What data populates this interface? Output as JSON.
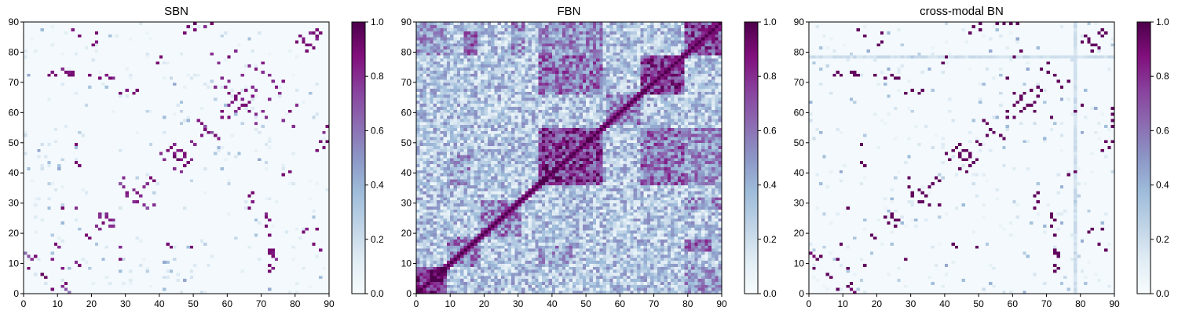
{
  "chart_data": [
    {
      "type": "heatmap",
      "title": "SBN",
      "xlabel": "",
      "ylabel": "",
      "xlim": [
        0,
        90
      ],
      "ylim": [
        0,
        90
      ],
      "xticks": [
        "0",
        "10",
        "20",
        "30",
        "40",
        "50",
        "60",
        "70",
        "80",
        "90"
      ],
      "yticks": [
        "0",
        "10",
        "20",
        "30",
        "40",
        "50",
        "60",
        "70",
        "80",
        "90"
      ],
      "colorbar": {
        "range": [
          0,
          1
        ],
        "ticks": [
          "0.0",
          "0.2",
          "0.4",
          "0.6",
          "0.8",
          "1.0"
        ]
      },
      "matrix_size": 90,
      "background": 0.02,
      "pairs": [
        [
          1,
          8,
          0.9
        ],
        [
          2,
          11,
          0.8
        ],
        [
          3,
          12,
          0.9
        ],
        [
          5,
          6,
          0.95
        ],
        [
          1,
          12,
          0.7
        ],
        [
          0,
          13,
          0.6
        ],
        [
          7,
          72,
          0.9
        ],
        [
          8,
          73,
          0.85
        ],
        [
          12,
          73,
          0.9
        ],
        [
          13,
          72,
          0.9
        ],
        [
          14,
          73,
          0.9
        ],
        [
          22,
          71,
          0.9
        ],
        [
          24,
          72,
          0.85
        ],
        [
          25,
          71,
          0.9
        ],
        [
          28,
          66,
          0.9
        ],
        [
          30,
          67,
          0.85
        ],
        [
          32,
          66,
          0.9
        ],
        [
          33,
          67,
          0.9
        ],
        [
          30,
          32,
          0.8
        ],
        [
          32,
          34,
          0.8
        ],
        [
          33,
          33,
          0.85
        ],
        [
          35,
          35,
          0.8
        ],
        [
          36,
          36,
          0.8
        ],
        [
          38,
          37,
          0.9
        ],
        [
          37,
          38,
          0.9
        ],
        [
          44,
          45,
          0.9
        ],
        [
          45,
          44,
          0.95
        ],
        [
          46,
          44,
          0.85
        ],
        [
          47,
          42,
          0.9
        ],
        [
          48,
          43,
          0.9
        ],
        [
          49,
          44,
          0.8
        ],
        [
          40,
          78,
          0.9
        ],
        [
          39,
          76,
          0.9
        ],
        [
          50,
          49,
          0.8
        ],
        [
          52,
          52,
          0.85
        ],
        [
          53,
          54,
          0.9
        ],
        [
          55,
          53,
          0.7
        ],
        [
          56,
          52,
          0.9
        ],
        [
          57,
          51,
          0.85
        ],
        [
          58,
          58,
          0.85
        ],
        [
          60,
          58,
          0.9
        ],
        [
          60,
          62,
          0.8
        ],
        [
          62,
          64,
          0.9
        ],
        [
          63,
          66,
          0.9
        ],
        [
          64,
          64,
          0.8
        ],
        [
          65,
          62,
          0.9
        ],
        [
          66,
          60,
          0.9
        ],
        [
          67,
          68,
          0.9
        ],
        [
          58,
          71,
          0.8
        ],
        [
          60,
          70,
          0.8
        ],
        [
          61,
          63,
          0.85
        ],
        [
          62,
          60,
          0.8
        ],
        [
          72,
          72,
          0.8
        ],
        [
          73,
          70,
          0.8
        ],
        [
          74,
          68,
          0.85
        ],
        [
          75,
          66,
          0.8
        ],
        [
          76,
          70,
          0.85
        ],
        [
          80,
          83,
          0.9
        ],
        [
          81,
          85,
          0.9
        ],
        [
          82,
          84,
          0.85
        ],
        [
          83,
          82,
          0.9
        ],
        [
          85,
          86,
          0.9
        ],
        [
          86,
          84,
          0.8
        ],
        [
          87,
          86,
          0.9
        ],
        [
          82,
          20,
          0.9
        ],
        [
          83,
          21,
          0.85
        ],
        [
          85,
          16,
          0.9
        ],
        [
          87,
          14,
          0.85
        ],
        [
          86,
          21,
          0.9
        ],
        [
          88,
          48,
          0.9
        ],
        [
          89,
          50,
          0.95
        ],
        [
          89,
          55,
          0.9
        ],
        [
          88,
          53,
          0.8
        ],
        [
          87,
          50,
          0.9
        ],
        [
          86,
          47,
          0.9
        ],
        [
          18,
          19,
          0.9
        ],
        [
          23,
          23,
          0.9
        ],
        [
          24,
          25,
          0.9
        ],
        [
          25,
          24,
          0.85
        ],
        [
          21,
          22,
          0.8
        ],
        [
          26,
          22,
          0.8
        ],
        [
          14,
          72,
          0.9
        ],
        [
          11,
          8,
          0.85
        ],
        [
          16,
          42,
          0.9
        ],
        [
          9,
          16,
          0.9
        ],
        [
          10,
          15,
          0.8
        ],
        [
          43,
          15,
          0.9
        ],
        [
          49,
          15,
          0.9
        ],
        [
          28,
          11,
          0.9
        ],
        [
          28,
          15,
          0.8
        ],
        [
          38,
          29,
          0.8
        ],
        [
          35,
          29,
          0.8
        ],
        [
          57,
          76,
          0.8
        ],
        [
          60,
          78,
          0.9
        ],
        [
          62,
          80,
          0.8
        ],
        [
          65,
          67,
          0.85
        ],
        [
          68,
          67,
          0.8
        ],
        [
          72,
          9,
          0.9
        ],
        [
          73,
          13,
          0.85
        ],
        [
          74,
          11,
          0.8
        ],
        [
          72,
          19,
          0.9
        ],
        [
          71,
          26,
          0.8
        ],
        [
          55,
          79,
          0.8
        ],
        [
          56,
          68,
          0.8
        ],
        [
          59,
          68,
          0.8
        ],
        [
          64,
          72,
          0.8
        ],
        [
          47,
          46,
          0.9
        ],
        [
          46,
          40,
          0.8
        ],
        [
          45,
          47,
          0.85
        ],
        [
          44,
          41,
          0.8
        ],
        [
          33,
          30,
          0.85
        ],
        [
          34,
          32,
          0.8
        ],
        [
          36,
          28,
          0.7
        ],
        [
          22,
          25,
          0.8
        ],
        [
          26,
          24,
          0.8
        ]
      ]
    },
    {
      "type": "heatmap",
      "title": "FBN",
      "xlabel": "",
      "ylabel": "",
      "xlim": [
        0,
        90
      ],
      "ylim": [
        0,
        90
      ],
      "xticks": [
        "0",
        "10",
        "20",
        "30",
        "40",
        "50",
        "60",
        "70",
        "80",
        "90"
      ],
      "yticks": [
        "0",
        "10",
        "20",
        "30",
        "40",
        "50",
        "60",
        "70",
        "80",
        "90"
      ],
      "colorbar": {
        "range": [
          0,
          1
        ],
        "ticks": [
          "0.0",
          "0.2",
          "0.4",
          "0.6",
          "0.8",
          "1.0"
        ]
      },
      "matrix_size": 90,
      "background": 0.3,
      "diagonal": 1.0,
      "blocks": [
        [
          0,
          9,
          0,
          9,
          0.8
        ],
        [
          9,
          19,
          9,
          19,
          0.55
        ],
        [
          19,
          31,
          19,
          31,
          0.55
        ],
        [
          36,
          55,
          36,
          55,
          0.75
        ],
        [
          56,
          66,
          56,
          66,
          0.55
        ],
        [
          66,
          79,
          66,
          79,
          0.75
        ],
        [
          79,
          90,
          79,
          90,
          0.7
        ],
        [
          36,
          55,
          66,
          79,
          0.6
        ],
        [
          66,
          79,
          36,
          55,
          0.6
        ],
        [
          14,
          18,
          79,
          87,
          0.6
        ],
        [
          79,
          87,
          14,
          18,
          0.6
        ],
        [
          0,
          9,
          79,
          90,
          0.45
        ],
        [
          79,
          90,
          0,
          9,
          0.45
        ],
        [
          36,
          55,
          79,
          90,
          0.5
        ],
        [
          79,
          90,
          36,
          55,
          0.5
        ],
        [
          10,
          16,
          36,
          46,
          0.45
        ],
        [
          36,
          46,
          10,
          16,
          0.45
        ],
        [
          28,
          32,
          79,
          90,
          0.5
        ],
        [
          79,
          90,
          28,
          32,
          0.5
        ]
      ]
    },
    {
      "type": "heatmap",
      "title": "cross-modal BN",
      "xlabel": "",
      "ylabel": "",
      "xlim": [
        0,
        90
      ],
      "ylim": [
        0,
        90
      ],
      "xticks": [
        "0",
        "10",
        "20",
        "30",
        "40",
        "50",
        "60",
        "70",
        "80",
        "90"
      ],
      "yticks": [
        "0",
        "10",
        "20",
        "30",
        "40",
        "50",
        "60",
        "70",
        "80",
        "90"
      ],
      "colorbar": {
        "range": [
          0,
          1
        ],
        "ticks": [
          "0.0",
          "0.2",
          "0.4",
          "0.6",
          "0.8",
          "1.0"
        ]
      },
      "matrix_size": 90,
      "background": 0.02,
      "stripe_column": 78,
      "stripe_value": 0.2,
      "pairs": [
        [
          1,
          8,
          0.95
        ],
        [
          2,
          11,
          0.95
        ],
        [
          3,
          12,
          0.95
        ],
        [
          5,
          6,
          0.95
        ],
        [
          1,
          12,
          0.9
        ],
        [
          0,
          13,
          0.9
        ],
        [
          7,
          72,
          0.95
        ],
        [
          8,
          73,
          0.95
        ],
        [
          12,
          73,
          0.95
        ],
        [
          13,
          72,
          0.95
        ],
        [
          22,
          71,
          0.95
        ],
        [
          24,
          72,
          0.95
        ],
        [
          25,
          71,
          0.95
        ],
        [
          28,
          66,
          0.95
        ],
        [
          30,
          67,
          0.95
        ],
        [
          32,
          66,
          0.95
        ],
        [
          33,
          67,
          0.95
        ],
        [
          30,
          32,
          0.95
        ],
        [
          32,
          34,
          0.95
        ],
        [
          33,
          33,
          0.95
        ],
        [
          35,
          35,
          0.95
        ],
        [
          36,
          36,
          0.95
        ],
        [
          38,
          37,
          0.95
        ],
        [
          44,
          45,
          0.95
        ],
        [
          45,
          44,
          0.95
        ],
        [
          46,
          44,
          0.95
        ],
        [
          47,
          42,
          0.95
        ],
        [
          48,
          43,
          0.95
        ],
        [
          49,
          44,
          0.95
        ],
        [
          40,
          78,
          0.95
        ],
        [
          39,
          76,
          0.95
        ],
        [
          50,
          49,
          0.95
        ],
        [
          52,
          52,
          0.95
        ],
        [
          53,
          54,
          0.95
        ],
        [
          56,
          52,
          0.95
        ],
        [
          57,
          51,
          0.95
        ],
        [
          58,
          58,
          0.95
        ],
        [
          60,
          58,
          0.95
        ],
        [
          60,
          62,
          0.95
        ],
        [
          62,
          64,
          0.95
        ],
        [
          63,
          66,
          0.95
        ],
        [
          65,
          62,
          0.95
        ],
        [
          66,
          60,
          0.95
        ],
        [
          67,
          68,
          0.95
        ],
        [
          58,
          71,
          0.95
        ],
        [
          61,
          63,
          0.95
        ],
        [
          62,
          60,
          0.95
        ],
        [
          72,
          72,
          0.95
        ],
        [
          73,
          70,
          0.95
        ],
        [
          74,
          68,
          0.95
        ],
        [
          76,
          70,
          0.95
        ],
        [
          80,
          83,
          0.95
        ],
        [
          81,
          85,
          0.95
        ],
        [
          82,
          84,
          0.95
        ],
        [
          83,
          82,
          0.95
        ],
        [
          85,
          86,
          0.95
        ],
        [
          87,
          86,
          0.95
        ],
        [
          82,
          20,
          0.95
        ],
        [
          83,
          21,
          0.95
        ],
        [
          85,
          16,
          0.95
        ],
        [
          87,
          14,
          0.95
        ],
        [
          86,
          21,
          0.95
        ],
        [
          88,
          48,
          0.95
        ],
        [
          89,
          50,
          0.95
        ],
        [
          89,
          55,
          0.95
        ],
        [
          87,
          50,
          0.95
        ],
        [
          86,
          47,
          0.95
        ],
        [
          18,
          19,
          0.95
        ],
        [
          23,
          23,
          0.95
        ],
        [
          24,
          25,
          0.95
        ],
        [
          25,
          24,
          0.95
        ],
        [
          14,
          72,
          0.95
        ],
        [
          11,
          8,
          0.95
        ],
        [
          16,
          42,
          0.95
        ],
        [
          9,
          16,
          0.95
        ],
        [
          43,
          15,
          0.95
        ],
        [
          49,
          15,
          0.95
        ],
        [
          28,
          11,
          0.95
        ],
        [
          38,
          29,
          0.95
        ],
        [
          35,
          29,
          0.95
        ],
        [
          60,
          78,
          0.95
        ],
        [
          62,
          80,
          0.95
        ],
        [
          65,
          67,
          0.95
        ],
        [
          72,
          9,
          0.95
        ],
        [
          73,
          13,
          0.95
        ],
        [
          72,
          19,
          0.95
        ],
        [
          71,
          26,
          0.95
        ],
        [
          47,
          46,
          0.95
        ],
        [
          46,
          40,
          0.95
        ],
        [
          45,
          47,
          0.95
        ],
        [
          44,
          41,
          0.95
        ],
        [
          33,
          30,
          0.95
        ],
        [
          34,
          32,
          0.95
        ],
        [
          22,
          25,
          0.95
        ],
        [
          26,
          24,
          0.95
        ],
        [
          55,
          89,
          0.95
        ],
        [
          57,
          89,
          0.95
        ],
        [
          59,
          89,
          0.95
        ],
        [
          61,
          89,
          0.95
        ]
      ]
    }
  ]
}
